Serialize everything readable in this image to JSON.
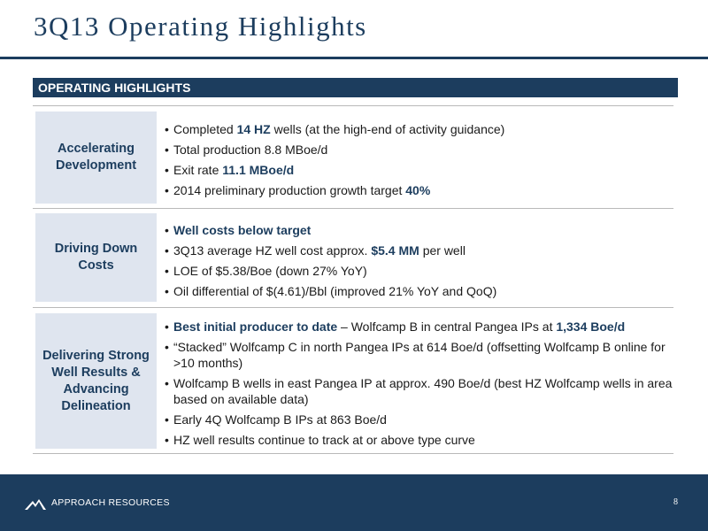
{
  "title": "3Q13 Operating Highlights",
  "section_header": "OPERATING HIGHLIGHTS",
  "rows": [
    {
      "label": "Accelerating Development",
      "bullets": [
        {
          "pre": "Completed ",
          "bold": "14 HZ",
          "post": " wells (at the high-end of activity guidance)"
        },
        {
          "pre": "Total production 8.8 MBoe/d",
          "bold": "",
          "post": ""
        },
        {
          "pre": "Exit rate ",
          "bold": "11.1 MBoe/d",
          "post": ""
        },
        {
          "pre": "2014 preliminary production growth target ",
          "bold": "40%",
          "post": ""
        }
      ]
    },
    {
      "label": "Driving Down Costs",
      "bullets": [
        {
          "pre": "",
          "bold": "Well costs below target",
          "post": ""
        },
        {
          "pre": "3Q13 average HZ well cost approx. ",
          "bold": "$5.4 MM",
          "post": " per well"
        },
        {
          "pre": "LOE of $5.38/Boe (down 27% YoY)",
          "bold": "",
          "post": ""
        },
        {
          "pre": "Oil differential of $(4.61)/Bbl (improved 21% YoY and QoQ)",
          "bold": "",
          "post": ""
        }
      ]
    },
    {
      "label": "Delivering Strong Well Results & Advancing Delineation",
      "bullets": [
        {
          "pre": "",
          "bold": "Best initial producer to date",
          "post": " – Wolfcamp B in central Pangea IPs at ",
          "bold2": "1,334 Boe/d"
        },
        {
          "pre": "“Stacked” Wolfcamp C in north Pangea IPs at 614 Boe/d (offsetting Wolfcamp B online for >10 months)",
          "bold": "",
          "post": ""
        },
        {
          "pre": "Wolfcamp B wells in east Pangea IP at approx. 490 Boe/d (best HZ Wolfcamp wells in area based on available data)",
          "bold": "",
          "post": ""
        },
        {
          "pre": "Early 4Q Wolfcamp B IPs at 863 Boe/d",
          "bold": "",
          "post": ""
        },
        {
          "pre": "HZ well results continue to track at or above type curve",
          "bold": "",
          "post": ""
        }
      ]
    }
  ],
  "footer": {
    "company": "APPROACH RESOURCES",
    "logo_icon": "approach-mountain-logo-icon",
    "page_number": "8"
  },
  "colors": {
    "brand_navy": "#1c3d5e",
    "label_bg": "#dfe5ef",
    "rule_gray": "#b9b9b9"
  }
}
